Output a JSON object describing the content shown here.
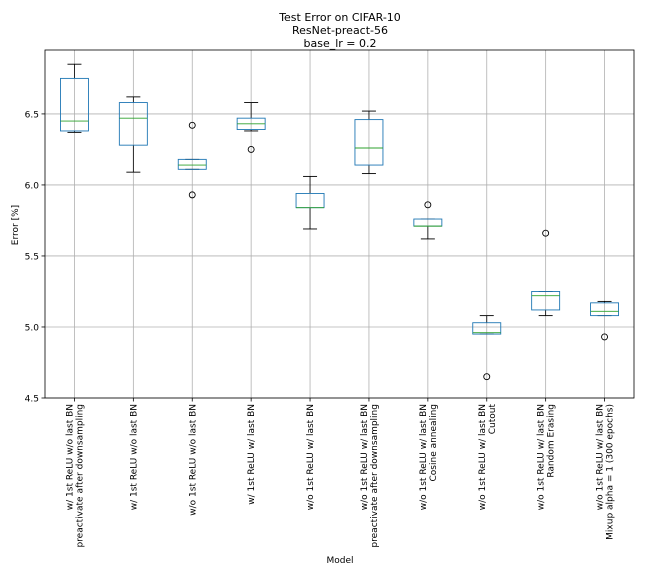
{
  "chart_data": {
    "type": "boxplot",
    "title_lines": [
      "Test Error on CIFAR-10",
      "ResNet-preact-56",
      "base_lr = 0.2"
    ],
    "xlabel": "Model",
    "ylabel": "Error [%]",
    "ylim": [
      4.5,
      6.95
    ],
    "yticks": [
      4.5,
      5.0,
      5.5,
      6.0,
      6.5
    ],
    "ytick_labels": [
      "4.5",
      "5.0",
      "5.5",
      "6.0",
      "6.5"
    ],
    "grid": true,
    "colors": {
      "box": "#1f77b4",
      "median": "#2ca02c",
      "whisker": "#000000",
      "grid": "#b0b0b0",
      "flier_edge": "#000000"
    },
    "boxes": [
      {
        "label_lines": [
          "w/ 1st ReLU w/o last BN",
          "preactivate after downsampling"
        ],
        "whislo": 6.37,
        "q1": 6.38,
        "med": 6.45,
        "q3": 6.75,
        "whishi": 6.85,
        "fliers": []
      },
      {
        "label_lines": [
          "w/ 1st ReLU w/o last BN"
        ],
        "whislo": 6.09,
        "q1": 6.28,
        "med": 6.47,
        "q3": 6.58,
        "whishi": 6.62,
        "fliers": []
      },
      {
        "label_lines": [
          "w/o 1st ReLU w/o last BN"
        ],
        "whislo": 6.11,
        "q1": 6.11,
        "med": 6.14,
        "q3": 6.18,
        "whishi": 6.18,
        "fliers": [
          6.42,
          5.93
        ]
      },
      {
        "label_lines": [
          "w/ 1st ReLU w/ last BN"
        ],
        "whislo": 6.38,
        "q1": 6.39,
        "med": 6.43,
        "q3": 6.47,
        "whishi": 6.58,
        "fliers": [
          6.25
        ]
      },
      {
        "label_lines": [
          "w/o 1st ReLU w/ last BN"
        ],
        "whislo": 5.69,
        "q1": 5.84,
        "med": 5.84,
        "q3": 5.94,
        "whishi": 6.06,
        "fliers": []
      },
      {
        "label_lines": [
          "w/o 1st ReLU w/ last BN",
          "preactivate after downsampling"
        ],
        "whislo": 6.08,
        "q1": 6.14,
        "med": 6.26,
        "q3": 6.46,
        "whishi": 6.52,
        "fliers": []
      },
      {
        "label_lines": [
          "w/o 1st ReLU w/ last BN",
          "Cosine annealing"
        ],
        "whislo": 5.62,
        "q1": 5.71,
        "med": 5.71,
        "q3": 5.76,
        "whishi": 5.76,
        "fliers": [
          5.86
        ]
      },
      {
        "label_lines": [
          "w/o 1st ReLU w/ last BN",
          "Cutout"
        ],
        "whislo": 4.95,
        "q1": 4.95,
        "med": 4.96,
        "q3": 5.03,
        "whishi": 5.08,
        "fliers": [
          4.65
        ]
      },
      {
        "label_lines": [
          "w/o 1st ReLU w/ last BN",
          "Random Erasing"
        ],
        "whislo": 5.08,
        "q1": 5.12,
        "med": 5.22,
        "q3": 5.25,
        "whishi": 5.25,
        "fliers": [
          5.66
        ]
      },
      {
        "label_lines": [
          "w/o 1st ReLU w/ last BN",
          "Mixup alpha = 1 (300 epochs)"
        ],
        "whislo": 5.08,
        "q1": 5.08,
        "med": 5.11,
        "q3": 5.17,
        "whishi": 5.18,
        "fliers": [
          4.93
        ]
      }
    ]
  }
}
